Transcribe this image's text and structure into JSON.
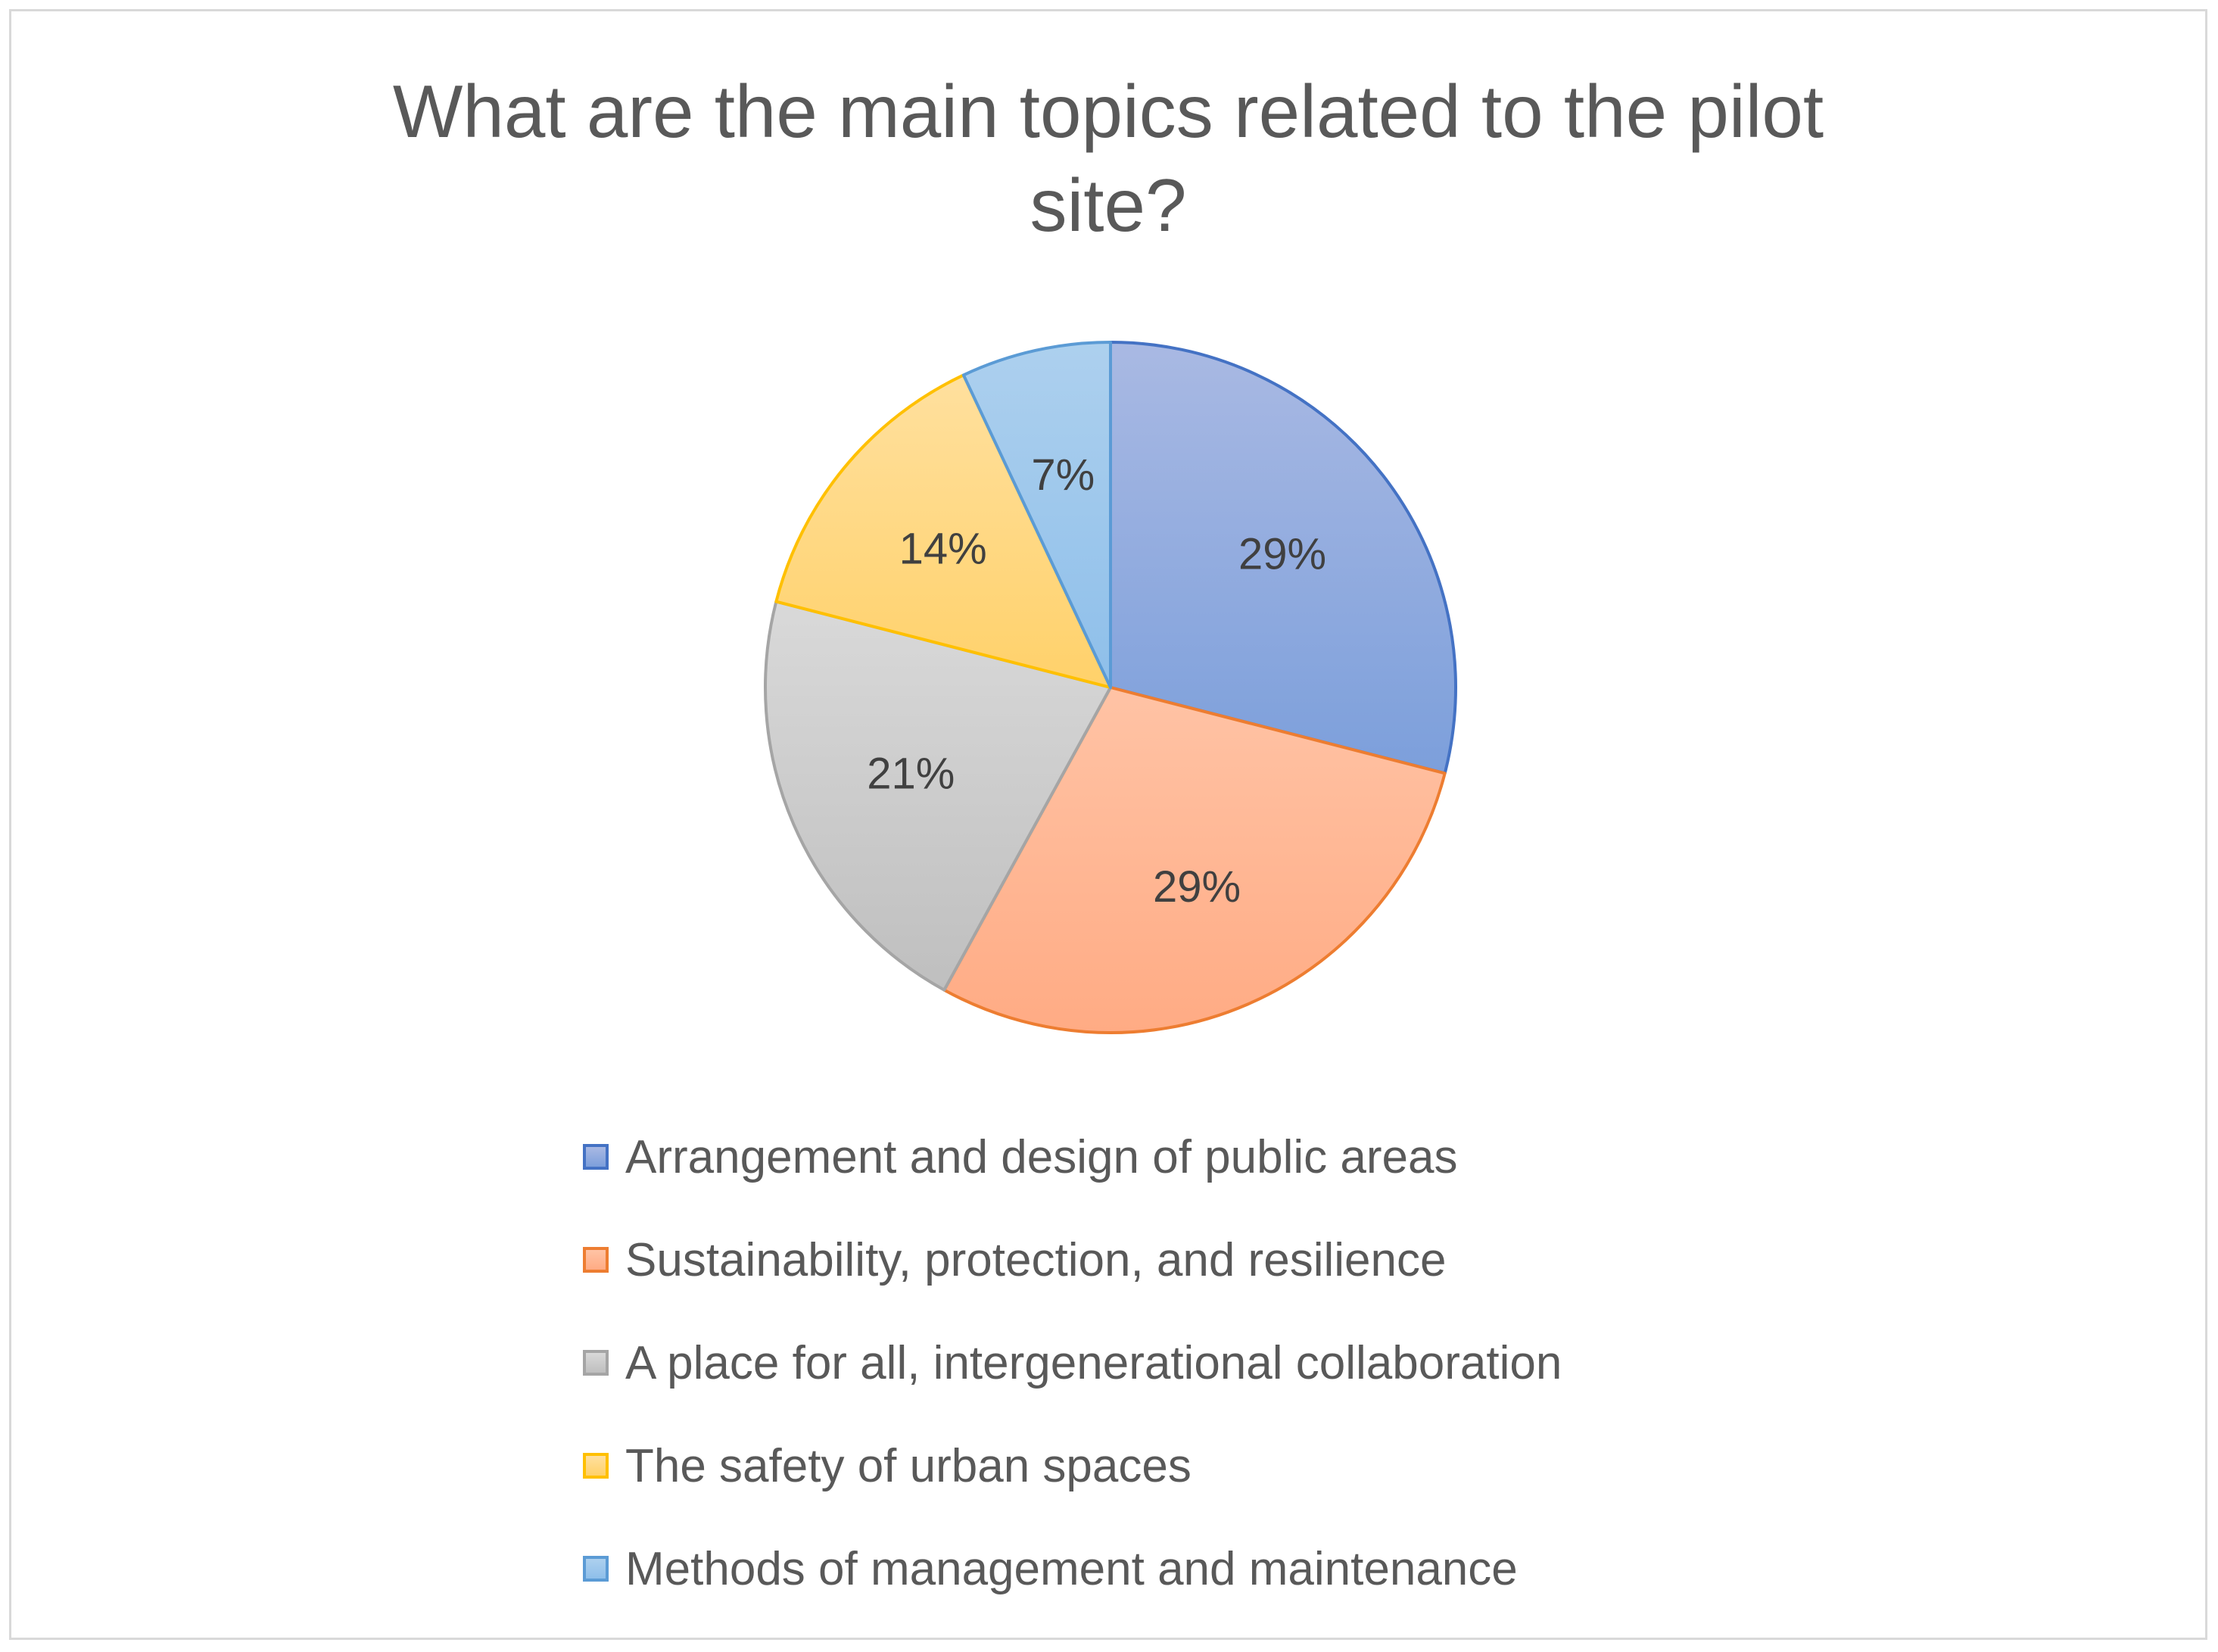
{
  "chart_data": {
    "type": "pie",
    "title": "What are the main topics related to the pilot site?",
    "title_lines": [
      "What are the main topics related to the pilot",
      "site?"
    ],
    "legend_position": "bottom",
    "categories": [
      "Arrangement and design of public areas",
      "Sustainability, protection, and resilience",
      "A place for all, intergenerational collaboration",
      "The safety of urban spaces",
      "Methods of management and maintenance"
    ],
    "values": [
      29,
      29,
      21,
      14,
      7
    ],
    "data_labels": [
      "29%",
      "29%",
      "21%",
      "14%",
      "7%"
    ],
    "colors_top": [
      "#a9b9e3",
      "#ffc3a5",
      "#d9d9d9",
      "#ffe09e",
      "#add0ee"
    ],
    "colors_bottom": [
      "#7c9fdb",
      "#ffab84",
      "#bfbfbf",
      "#ffd16a",
      "#8ebfea"
    ],
    "stroke_colors": [
      "#4472c4",
      "#ed7d31",
      "#a5a5a5",
      "#ffc000",
      "#5b9bd5"
    ]
  }
}
